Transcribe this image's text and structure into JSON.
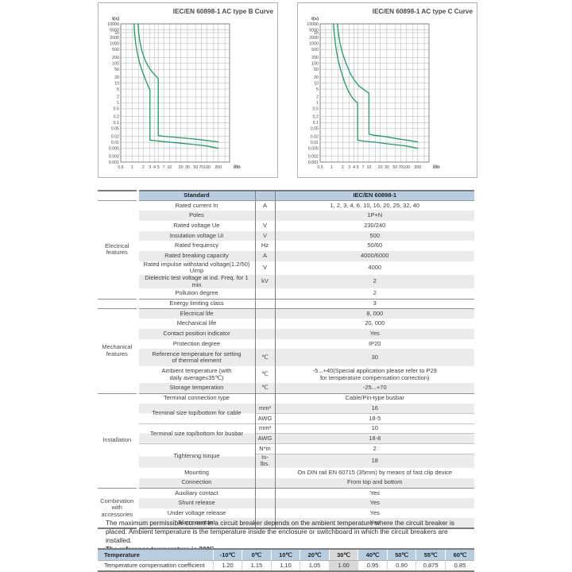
{
  "chart_data": [
    {
      "type": "line",
      "title": "IEC/EN 60898-1 AC type B Curve",
      "xlabel": "I/In",
      "ylabel": "t(s)",
      "x_scale": "log",
      "y_scale": "log",
      "xlim": [
        0.5,
        400
      ],
      "ylim": [
        0.001,
        10000
      ],
      "x_ticks": [
        [
          "0.5",
          0.5
        ],
        [
          "1",
          1
        ],
        [
          "2",
          2
        ],
        [
          "3",
          3
        ],
        [
          "4",
          4
        ],
        [
          "5",
          5
        ],
        [
          "7",
          7
        ],
        [
          "10",
          10
        ],
        [
          "20",
          20
        ],
        [
          "30",
          30
        ],
        [
          "50",
          50
        ],
        [
          "70",
          70
        ],
        [
          "100",
          100
        ],
        [
          "200",
          200
        ]
      ],
      "x_minor_gridlines": [
        0.7,
        1.5,
        15,
        150,
        300
      ],
      "y_ticks": [
        [
          "10000",
          10000
        ],
        [
          "5000",
          5000
        ],
        [
          "1h",
          3600
        ],
        [
          "2000",
          2000
        ],
        [
          "1000",
          1000
        ],
        [
          "500",
          500
        ],
        [
          "200",
          200
        ],
        [
          "100",
          100
        ],
        [
          "50",
          50
        ],
        [
          "20",
          20
        ],
        [
          "10",
          10
        ],
        [
          "5",
          5
        ],
        [
          "2",
          2
        ],
        [
          "1",
          1
        ],
        [
          "0.5",
          0.5
        ],
        [
          "0.2",
          0.2
        ],
        [
          "0.1",
          0.1
        ],
        [
          "0.05",
          0.05
        ],
        [
          "0.02",
          0.02
        ],
        [
          "0.01",
          0.01
        ],
        [
          "0.005",
          0.005
        ],
        [
          "0.002",
          0.002
        ],
        [
          "0.001",
          0.001
        ]
      ],
      "curve_color": "#17a05e",
      "series": [
        {
          "name": "lower-limit",
          "points": [
            [
              1.13,
              10000
            ],
            [
              1.17,
              3600
            ],
            [
              1.25,
              1000
            ],
            [
              1.4,
              300
            ],
            [
              1.6,
              100
            ],
            [
              1.9,
              38
            ],
            [
              2.3,
              14
            ],
            [
              2.75,
              6.5
            ],
            [
              3,
              4.5
            ],
            [
              3,
              0.013
            ],
            [
              4,
              0.0122
            ],
            [
              7,
              0.0108
            ],
            [
              15,
              0.0095
            ],
            [
              40,
              0.008
            ],
            [
              100,
              0.0065
            ],
            [
              200,
              0.005
            ]
          ]
        },
        {
          "name": "upper-limit",
          "points": [
            [
              1.45,
              10000
            ],
            [
              1.5,
              3600
            ],
            [
              1.62,
              1200
            ],
            [
              1.85,
              400
            ],
            [
              2.2,
              150
            ],
            [
              2.7,
              70
            ],
            [
              3.4,
              38
            ],
            [
              4.3,
              23
            ],
            [
              5,
              17
            ],
            [
              5,
              0.022
            ],
            [
              6.5,
              0.0205
            ],
            [
              12,
              0.0185
            ],
            [
              30,
              0.016
            ],
            [
              80,
              0.013
            ],
            [
              200,
              0.0105
            ]
          ]
        }
      ]
    },
    {
      "type": "line",
      "title": "IEC/EN 60898-1 AC type C Curve",
      "xlabel": "I/In",
      "ylabel": "t(s)",
      "x_scale": "log",
      "y_scale": "log",
      "xlim": [
        0.5,
        400
      ],
      "ylim": [
        0.001,
        10000
      ],
      "x_ticks": [
        [
          "0.5",
          0.5
        ],
        [
          "1",
          1
        ],
        [
          "2",
          2
        ],
        [
          "3",
          3
        ],
        [
          "4",
          4
        ],
        [
          "5",
          5
        ],
        [
          "7",
          7
        ],
        [
          "10",
          10
        ],
        [
          "20",
          20
        ],
        [
          "30",
          30
        ],
        [
          "50",
          50
        ],
        [
          "70",
          70
        ],
        [
          "100",
          100
        ],
        [
          "200",
          200
        ]
      ],
      "x_minor_gridlines": [
        0.7,
        1.5,
        15,
        150,
        300
      ],
      "y_ticks": [
        [
          "10000",
          10000
        ],
        [
          "5000",
          5000
        ],
        [
          "1h",
          3600
        ],
        [
          "2000",
          2000
        ],
        [
          "1000",
          1000
        ],
        [
          "500",
          500
        ],
        [
          "200",
          200
        ],
        [
          "100",
          100
        ],
        [
          "50",
          50
        ],
        [
          "20",
          20
        ],
        [
          "10",
          10
        ],
        [
          "5",
          5
        ],
        [
          "2",
          2
        ],
        [
          "1",
          1
        ],
        [
          "0.5",
          0.5
        ],
        [
          "0.2",
          0.2
        ],
        [
          "0.1",
          0.1
        ],
        [
          "0.05",
          0.05
        ],
        [
          "0.02",
          0.02
        ],
        [
          "0.01",
          0.01
        ],
        [
          "0.005",
          0.005
        ],
        [
          "0.002",
          0.002
        ],
        [
          "0.001",
          0.001
        ]
      ],
      "curve_color": "#17a05e",
      "series": [
        {
          "name": "lower-limit",
          "points": [
            [
              1.13,
              10000
            ],
            [
              1.18,
              3600
            ],
            [
              1.3,
              700
            ],
            [
              1.5,
              150
            ],
            [
              1.8,
              40
            ],
            [
              2.2,
              12
            ],
            [
              2.8,
              4
            ],
            [
              3.6,
              1.8
            ],
            [
              4.5,
              1.15
            ],
            [
              5,
              1
            ],
            [
              5,
              0.013
            ],
            [
              7,
              0.0115
            ],
            [
              15,
              0.01
            ],
            [
              40,
              0.008
            ],
            [
              100,
              0.0065
            ],
            [
              200,
              0.005
            ]
          ]
        },
        {
          "name": "upper-limit",
          "points": [
            [
              1.45,
              10000
            ],
            [
              1.52,
              3600
            ],
            [
              1.7,
              1000
            ],
            [
              2.0,
              300
            ],
            [
              2.5,
              90
            ],
            [
              3.2,
              30
            ],
            [
              4.2,
              13
            ],
            [
              5.5,
              7
            ],
            [
              7.5,
              4.5
            ],
            [
              9.5,
              3.3
            ],
            [
              10,
              3
            ],
            [
              10,
              0.026
            ],
            [
              13,
              0.023
            ],
            [
              25,
              0.02
            ],
            [
              60,
              0.015
            ],
            [
              130,
              0.012
            ],
            [
              200,
              0.0105
            ]
          ]
        }
      ]
    }
  ],
  "spec_table": {
    "header": {
      "group": "",
      "standard": "Standard",
      "unit": "",
      "value": "IEC/EN 60898-1"
    },
    "colors": {
      "header_bg": "#b7cde2",
      "zebra": "#ebebeb",
      "curve_green": "#17a05e",
      "highlight": "#d9d9d9"
    },
    "groups": [
      {
        "label": "Electrical\nfeatures",
        "rows": [
          {
            "param": "Rated current In",
            "unit": "A",
            "value": "1, 2, 3, 4, 6, 10, 16, 20, 25, 32, 40",
            "shade": false
          },
          {
            "param": "Poles",
            "unit": "",
            "value": "1P+N",
            "shade": true
          },
          {
            "param": "Rated voltage Ue",
            "unit": "V",
            "value": "230/240",
            "shade": false
          },
          {
            "param": "Insulation voltage Ui",
            "unit": "V",
            "value": "500",
            "shade": true
          },
          {
            "param": "Rated frequency",
            "unit": "Hz",
            "value": "50/60",
            "shade": false
          },
          {
            "param": "Rated breaking capacity",
            "unit": "A",
            "value": "4000/6000",
            "shade": true
          },
          {
            "param": "Rated impulse withstand voltage(1.2/50) Uimp",
            "unit": "V",
            "value": "4000",
            "shade": false
          },
          {
            "param": "Dielectric test voltage at ind. Freq. for 1 min",
            "unit": "kV",
            "value": "2",
            "shade": true
          },
          {
            "param": "Pollution degree",
            "unit": "",
            "value": "2",
            "shade": false
          }
        ]
      },
      {
        "label": "",
        "rows": [
          {
            "param": "Energy limiting class",
            "unit": "",
            "value": "3",
            "shade": false
          }
        ]
      },
      {
        "label": "Mechanical\nfeatures",
        "rows": [
          {
            "param": "Electrical life",
            "unit": "",
            "value": "8, 000",
            "shade": true
          },
          {
            "param": "Mechanical life",
            "unit": "",
            "value": "20, 000",
            "shade": false
          },
          {
            "param": "Contact position indicator",
            "unit": "",
            "value": "Yes",
            "shade": true
          },
          {
            "param": "Protection degree",
            "unit": "",
            "value": "IP20",
            "shade": false
          },
          {
            "param": "Reference temperature for setting\nof thermal element",
            "unit": "℃",
            "value": "30",
            "shade": true,
            "tall": true
          },
          {
            "param": "Ambient temperature (with\ndaily  average≤35℃)",
            "unit": "℃",
            "value": "-5...+40(Special application please refer to P29\nfor temperature compensation correction)",
            "shade": false,
            "tall": true
          },
          {
            "param": "Storage  temperation",
            "unit": "℃",
            "value": "-25...+70",
            "shade": true
          }
        ]
      },
      {
        "label": "Installation",
        "rows": [
          {
            "param": "Terminal  connection  type",
            "unit": "",
            "value": "Cable/Pin-type busbar",
            "shade": false
          },
          {
            "param": "Terminal  size  top/bottom  for  cable",
            "subs": [
              {
                "unit": "mm²",
                "value": "16",
                "shade": true
              },
              {
                "unit": "AWG",
                "value": "18-5",
                "shade": false,
                "sep": true
              }
            ]
          },
          {
            "param": "Terminal  size  top/bottom  for  busbar",
            "subs": [
              {
                "unit": "mm²",
                "value": "10",
                "shade": false,
                "sep": true
              },
              {
                "unit": "AWG",
                "value": "18-8",
                "shade": true,
                "sep": true
              }
            ]
          },
          {
            "param": "Tightening  torque",
            "subs": [
              {
                "unit": "N*m",
                "value": "2",
                "shade": false,
                "sep": true
              },
              {
                "unit": "In-lbs.",
                "value": "18",
                "shade": true,
                "sep": true
              }
            ]
          },
          {
            "param": "Mounting",
            "unit": "",
            "value": "On DIN rail EN 60715 (35mm) by means of fast clip device",
            "shade": false
          },
          {
            "param": "Connection",
            "unit": "",
            "value": "From top and bottom",
            "shade": true
          }
        ]
      },
      {
        "label": "Combination\nwith\naccessories",
        "rows": [
          {
            "param": "Auxiliary  contact",
            "unit": "",
            "value": "Yes",
            "shade": false
          },
          {
            "param": "Shunt  release",
            "unit": "",
            "value": "Yes",
            "shade": true
          },
          {
            "param": "Under  voltage  release",
            "unit": "",
            "value": "Yes",
            "shade": false
          },
          {
            "param": "Alarm  contant",
            "unit": "",
            "value": "Yes",
            "shade": true
          }
        ]
      }
    ]
  },
  "note": {
    "line1": "The maximum permissible current in a circuit breaker depends on the ambient temperature where the circuit breaker is",
    "line2": "placed. Ambient temperature is the temperature inside the enclosure or switchboard in which the circuit breakers are installed.",
    "line3": "The reference temperature is 30℃"
  },
  "temp_table": {
    "header_label": "Temperature",
    "row_label": "Temperature compensation coefficient",
    "columns": [
      "-10℃",
      "0℃",
      "10℃",
      "20℃",
      "30℃",
      "40℃",
      "50℃",
      "55℃",
      "60℃"
    ],
    "values": [
      "1.20",
      "1.15",
      "1.10",
      "1.05",
      "1.00",
      "0.95",
      "0.90",
      "0.875",
      "0.85"
    ],
    "highlight_index": 4
  }
}
